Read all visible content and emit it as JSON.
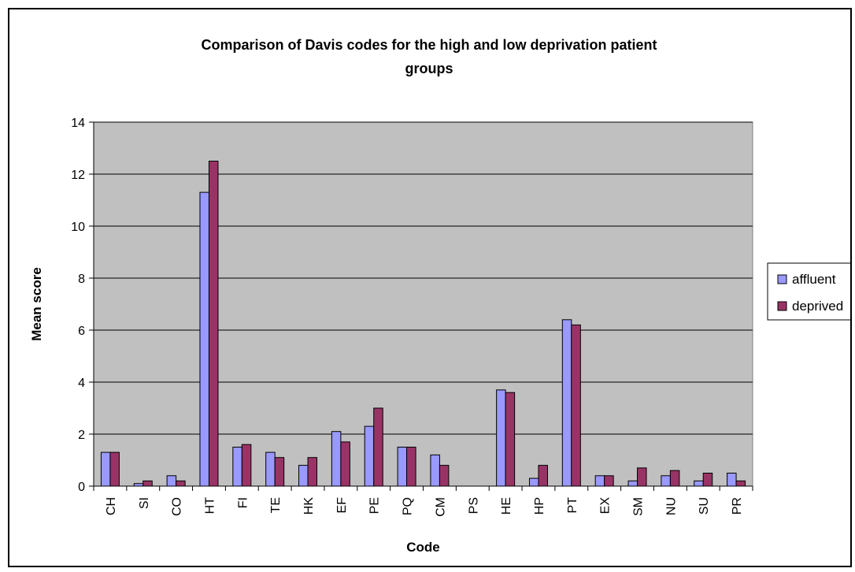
{
  "chart_data": {
    "type": "bar",
    "title_lines": [
      "Comparison of Davis codes for the high and low deprivation patient",
      "groups"
    ],
    "xlabel": "Code",
    "ylabel": "Mean score",
    "ylim": [
      0,
      14
    ],
    "yticks": [
      0,
      2,
      4,
      6,
      8,
      10,
      12,
      14
    ],
    "grid": true,
    "legend": "right",
    "categories": [
      "CH",
      "SI",
      "CO",
      "HT",
      "FI",
      "TE",
      "HK",
      "EF",
      "PE",
      "PQ",
      "CM",
      "PS",
      "HE",
      "HP",
      "PT",
      "EX",
      "SM",
      "NU",
      "SU",
      "PR"
    ],
    "series": [
      {
        "name": "affluent",
        "color": "#9999FF",
        "values": [
          1.3,
          0.1,
          0.4,
          11.3,
          1.5,
          1.3,
          0.8,
          2.1,
          2.3,
          1.5,
          1.2,
          0.0,
          3.7,
          0.3,
          6.4,
          0.4,
          0.2,
          0.4,
          0.2,
          0.5
        ]
      },
      {
        "name": "deprived",
        "color": "#993366",
        "values": [
          1.3,
          0.2,
          0.2,
          12.5,
          1.6,
          1.1,
          1.1,
          1.7,
          3.0,
          1.5,
          0.8,
          0.0,
          3.6,
          0.8,
          6.2,
          0.4,
          0.7,
          0.6,
          0.5,
          0.2
        ]
      }
    ],
    "plot_background": "#C0C0C0"
  }
}
